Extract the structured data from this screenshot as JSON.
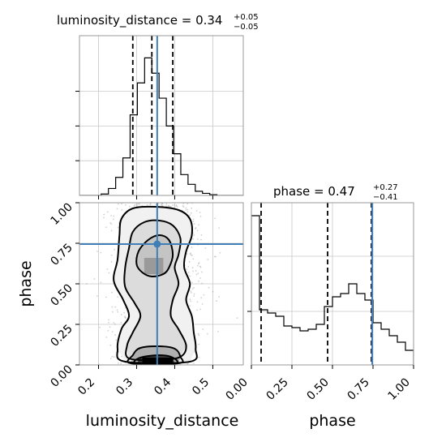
{
  "chart_data": [
    {
      "type": "histogram",
      "panel": "top-left",
      "title_param": "luminosity_distance",
      "title_value": "0.34",
      "title_plus": "+0.05",
      "title_minus": "−0.05",
      "xlim": [
        0.15,
        0.58
      ],
      "ylim": [
        0,
        230
      ],
      "x_ticks": [
        0.2,
        0.3,
        0.4,
        0.5
      ],
      "y_ticks": [
        50,
        100,
        150
      ],
      "grid": true,
      "bin_edges": [
        0.15,
        0.169,
        0.188,
        0.207,
        0.226,
        0.245,
        0.264,
        0.283,
        0.302,
        0.321,
        0.34,
        0.359,
        0.378,
        0.397,
        0.416,
        0.435,
        0.454,
        0.473,
        0.492,
        0.511,
        0.53,
        0.549,
        0.568,
        0.587
      ],
      "counts": [
        0,
        0,
        0,
        2,
        10,
        26,
        54,
        116,
        162,
        198,
        176,
        140,
        100,
        60,
        30,
        16,
        6,
        3,
        1,
        0,
        0,
        0,
        0
      ],
      "quantile_lines": [
        0.29,
        0.34,
        0.395
      ],
      "truth": 0.354
    },
    {
      "type": "contour-2d",
      "panel": "bottom-left",
      "xlabel": "luminosity_distance",
      "ylabel": "phase",
      "xlim": [
        0.15,
        0.58
      ],
      "ylim": [
        0.0,
        1.0
      ],
      "x_ticks": [
        0.2,
        0.3,
        0.4,
        0.5
      ],
      "x_tick_labels": [
        "0.2",
        "0.3",
        "0.4",
        "0.5"
      ],
      "y_ticks": [
        0.0,
        0.25,
        0.5,
        0.75,
        1.0
      ],
      "y_tick_labels": [
        "0.00",
        "0.25",
        "0.50",
        "0.75",
        "1.00"
      ],
      "grid": true,
      "truth": {
        "x": 0.354,
        "y": 0.745
      },
      "contours": [
        {
          "level": "outer",
          "points": [
            [
              0.27,
              0.02
            ],
            [
              0.25,
              0.1
            ],
            [
              0.26,
              0.22
            ],
            [
              0.28,
              0.3
            ],
            [
              0.265,
              0.4
            ],
            [
              0.24,
              0.52
            ],
            [
              0.25,
              0.65
            ],
            [
              0.255,
              0.8
            ],
            [
              0.26,
              0.9
            ],
            [
              0.29,
              0.965
            ],
            [
              0.35,
              0.975
            ],
            [
              0.41,
              0.955
            ],
            [
              0.44,
              0.9
            ],
            [
              0.445,
              0.8
            ],
            [
              0.43,
              0.7
            ],
            [
              0.425,
              0.6
            ],
            [
              0.44,
              0.5
            ],
            [
              0.43,
              0.4
            ],
            [
              0.445,
              0.3
            ],
            [
              0.45,
              0.2
            ],
            [
              0.455,
              0.1
            ],
            [
              0.44,
              0.02
            ]
          ]
        },
        {
          "level": "mid",
          "points": [
            [
              0.28,
              0.04
            ],
            [
              0.275,
              0.12
            ],
            [
              0.29,
              0.2
            ],
            [
              0.31,
              0.3
            ],
            [
              0.295,
              0.38
            ],
            [
              0.27,
              0.48
            ],
            [
              0.27,
              0.6
            ],
            [
              0.28,
              0.72
            ],
            [
              0.29,
              0.82
            ],
            [
              0.32,
              0.88
            ],
            [
              0.36,
              0.89
            ],
            [
              0.395,
              0.86
            ],
            [
              0.415,
              0.78
            ],
            [
              0.41,
              0.68
            ],
            [
              0.4,
              0.6
            ],
            [
              0.41,
              0.5
            ],
            [
              0.395,
              0.4
            ],
            [
              0.39,
              0.3
            ],
            [
              0.41,
              0.22
            ],
            [
              0.43,
              0.12
            ],
            [
              0.415,
              0.05
            ],
            [
              0.36,
              0.03
            ]
          ]
        },
        {
          "level": "inner",
          "points": [
            [
              0.3,
              0.62
            ],
            [
              0.305,
              0.7
            ],
            [
              0.33,
              0.77
            ],
            [
              0.36,
              0.8
            ],
            [
              0.385,
              0.77
            ],
            [
              0.395,
              0.68
            ],
            [
              0.385,
              0.6
            ],
            [
              0.37,
              0.56
            ],
            [
              0.34,
              0.545
            ],
            [
              0.315,
              0.57
            ]
          ]
        },
        {
          "level": "bottom-a",
          "points": [
            [
              0.285,
              0.01
            ],
            [
              0.29,
              0.06
            ],
            [
              0.31,
              0.105
            ],
            [
              0.36,
              0.115
            ],
            [
              0.4,
              0.1
            ],
            [
              0.415,
              0.05
            ],
            [
              0.41,
              0.01
            ]
          ]
        },
        {
          "level": "bottom-b",
          "points": [
            [
              0.3,
              0.01
            ],
            [
              0.31,
              0.045
            ],
            [
              0.36,
              0.06
            ],
            [
              0.395,
              0.045
            ],
            [
              0.4,
              0.01
            ]
          ]
        }
      ]
    },
    {
      "type": "histogram",
      "panel": "bottom-right",
      "title_param": "phase",
      "title_value": "0.47",
      "title_plus": "+0.27",
      "title_minus": "−0.41",
      "xlabel": "phase",
      "xlim": [
        0.0,
        1.0
      ],
      "ylim": [
        0,
        1.0
      ],
      "x_ticks": [
        0.0,
        0.25,
        0.5,
        0.75,
        1.0
      ],
      "x_tick_labels": [
        "0.00",
        "0.25",
        "0.50",
        "0.75",
        "1.00"
      ],
      "y_ticks": [
        0.33,
        0.67
      ],
      "grid": true,
      "bin_edges": [
        0,
        0.05,
        0.1,
        0.15,
        0.2,
        0.25,
        0.3,
        0.35,
        0.4,
        0.45,
        0.5,
        0.55,
        0.6,
        0.65,
        0.7,
        0.75,
        0.8,
        0.85,
        0.9,
        0.95,
        1.0
      ],
      "counts": [
        0.92,
        0.34,
        0.32,
        0.3,
        0.24,
        0.23,
        0.21,
        0.22,
        0.25,
        0.36,
        0.42,
        0.44,
        0.5,
        0.44,
        0.4,
        0.26,
        0.22,
        0.18,
        0.14,
        0.09
      ],
      "quantile_lines": [
        0.06,
        0.47,
        0.74
      ],
      "truth": 0.745
    }
  ]
}
